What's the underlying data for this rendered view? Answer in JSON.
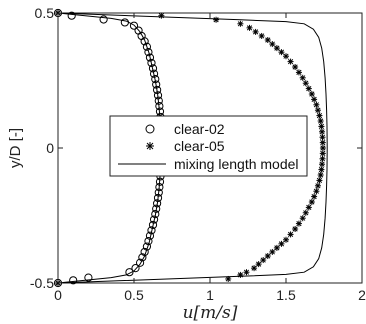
{
  "chart_data": {
    "type": "scatter",
    "xlabel": "u[m/s]",
    "ylabel": "y/D [-]",
    "xlim": [
      0,
      2
    ],
    "ylim": [
      -0.5,
      0.5
    ],
    "xticks": [
      "0",
      "0.5",
      "1",
      "1.5",
      "2"
    ],
    "yticks": [
      "-0.5",
      "0",
      "0.5"
    ],
    "grid": false,
    "legend_position": "center",
    "series": [
      {
        "name": "clear-02",
        "marker": "circle",
        "points": [
          [
            0.0,
            0.5
          ],
          [
            0.09,
            0.49
          ],
          [
            0.3,
            0.476
          ],
          [
            0.44,
            0.465
          ],
          [
            0.5,
            0.453
          ],
          [
            0.53,
            0.435
          ],
          [
            0.55,
            0.415
          ],
          [
            0.57,
            0.395
          ],
          [
            0.585,
            0.375
          ],
          [
            0.595,
            0.355
          ],
          [
            0.605,
            0.335
          ],
          [
            0.615,
            0.315
          ],
          [
            0.625,
            0.295
          ],
          [
            0.632,
            0.275
          ],
          [
            0.64,
            0.255
          ],
          [
            0.646,
            0.235
          ],
          [
            0.652,
            0.215
          ],
          [
            0.658,
            0.195
          ],
          [
            0.663,
            0.175
          ],
          [
            0.667,
            0.155
          ],
          [
            0.671,
            0.135
          ],
          [
            0.674,
            0.115
          ],
          [
            0.676,
            0.095
          ],
          [
            0.678,
            0.075
          ],
          [
            0.679,
            0.055
          ],
          [
            0.68,
            0.035
          ],
          [
            0.68,
            0.015
          ],
          [
            0.68,
            -0.005
          ],
          [
            0.68,
            -0.025
          ],
          [
            0.679,
            -0.045
          ],
          [
            0.678,
            -0.065
          ],
          [
            0.676,
            -0.085
          ],
          [
            0.674,
            -0.105
          ],
          [
            0.671,
            -0.125
          ],
          [
            0.667,
            -0.145
          ],
          [
            0.663,
            -0.165
          ],
          [
            0.658,
            -0.185
          ],
          [
            0.652,
            -0.205
          ],
          [
            0.646,
            -0.225
          ],
          [
            0.64,
            -0.245
          ],
          [
            0.632,
            -0.265
          ],
          [
            0.625,
            -0.285
          ],
          [
            0.615,
            -0.305
          ],
          [
            0.605,
            -0.325
          ],
          [
            0.595,
            -0.345
          ],
          [
            0.585,
            -0.365
          ],
          [
            0.57,
            -0.385
          ],
          [
            0.555,
            -0.405
          ],
          [
            0.54,
            -0.425
          ],
          [
            0.51,
            -0.445
          ],
          [
            0.47,
            -0.46
          ],
          [
            0.2,
            -0.48
          ],
          [
            0.1,
            -0.49
          ],
          [
            0.0,
            -0.5
          ]
        ]
      },
      {
        "name": "clear-05",
        "marker": "asterisk",
        "points": [
          [
            0.0,
            0.5
          ],
          [
            0.68,
            0.49
          ],
          [
            1.04,
            0.475
          ],
          [
            1.2,
            0.46
          ],
          [
            1.26,
            0.445
          ],
          [
            1.3,
            0.43
          ],
          [
            1.34,
            0.415
          ],
          [
            1.38,
            0.4
          ],
          [
            1.41,
            0.385
          ],
          [
            1.44,
            0.37
          ],
          [
            1.47,
            0.355
          ],
          [
            1.5,
            0.34
          ],
          [
            1.53,
            0.32
          ],
          [
            1.56,
            0.3
          ],
          [
            1.585,
            0.28
          ],
          [
            1.61,
            0.26
          ],
          [
            1.63,
            0.24
          ],
          [
            1.65,
            0.22
          ],
          [
            1.67,
            0.2
          ],
          [
            1.685,
            0.18
          ],
          [
            1.7,
            0.16
          ],
          [
            1.71,
            0.14
          ],
          [
            1.72,
            0.12
          ],
          [
            1.728,
            0.1
          ],
          [
            1.733,
            0.08
          ],
          [
            1.737,
            0.06
          ],
          [
            1.74,
            0.04
          ],
          [
            1.742,
            0.02
          ],
          [
            1.743,
            0.0
          ],
          [
            1.742,
            -0.02
          ],
          [
            1.74,
            -0.04
          ],
          [
            1.737,
            -0.06
          ],
          [
            1.733,
            -0.08
          ],
          [
            1.728,
            -0.1
          ],
          [
            1.72,
            -0.12
          ],
          [
            1.71,
            -0.14
          ],
          [
            1.7,
            -0.16
          ],
          [
            1.685,
            -0.18
          ],
          [
            1.67,
            -0.2
          ],
          [
            1.65,
            -0.22
          ],
          [
            1.63,
            -0.24
          ],
          [
            1.61,
            -0.26
          ],
          [
            1.585,
            -0.28
          ],
          [
            1.56,
            -0.3
          ],
          [
            1.53,
            -0.32
          ],
          [
            1.5,
            -0.34
          ],
          [
            1.47,
            -0.355
          ],
          [
            1.44,
            -0.37
          ],
          [
            1.41,
            -0.385
          ],
          [
            1.38,
            -0.4
          ],
          [
            1.35,
            -0.415
          ],
          [
            1.32,
            -0.43
          ],
          [
            1.29,
            -0.445
          ],
          [
            1.24,
            -0.46
          ],
          [
            1.2,
            -0.47
          ],
          [
            1.12,
            -0.485
          ],
          [
            0.0,
            -0.5
          ]
        ]
      },
      {
        "name": "mixing length model",
        "marker": "line",
        "curves": [
          [
            [
              0.0,
              0.5
            ],
            [
              0.35,
              0.48
            ],
            [
              0.45,
              0.47
            ],
            [
              0.5,
              0.455
            ],
            [
              0.54,
              0.43
            ],
            [
              0.57,
              0.4
            ],
            [
              0.6,
              0.35
            ],
            [
              0.62,
              0.3
            ],
            [
              0.64,
              0.25
            ],
            [
              0.655,
              0.2
            ],
            [
              0.665,
              0.15
            ],
            [
              0.672,
              0.1
            ],
            [
              0.676,
              0.05
            ],
            [
              0.677,
              0.0
            ],
            [
              0.676,
              -0.05
            ],
            [
              0.672,
              -0.1
            ],
            [
              0.665,
              -0.15
            ],
            [
              0.655,
              -0.2
            ],
            [
              0.64,
              -0.25
            ],
            [
              0.62,
              -0.3
            ],
            [
              0.6,
              -0.35
            ],
            [
              0.57,
              -0.4
            ],
            [
              0.54,
              -0.43
            ],
            [
              0.5,
              -0.455
            ],
            [
              0.45,
              -0.47
            ],
            [
              0.35,
              -0.48
            ],
            [
              0.0,
              -0.5
            ]
          ],
          [
            [
              0.0,
              0.5
            ],
            [
              1.2,
              0.475
            ],
            [
              1.5,
              0.468
            ],
            [
              1.62,
              0.46
            ],
            [
              1.68,
              0.44
            ],
            [
              1.715,
              0.41
            ],
            [
              1.735,
              0.37
            ],
            [
              1.748,
              0.32
            ],
            [
              1.757,
              0.26
            ],
            [
              1.763,
              0.2
            ],
            [
              1.767,
              0.14
            ],
            [
              1.77,
              0.08
            ],
            [
              1.771,
              0.0
            ],
            [
              1.77,
              -0.08
            ],
            [
              1.767,
              -0.14
            ],
            [
              1.763,
              -0.2
            ],
            [
              1.757,
              -0.26
            ],
            [
              1.748,
              -0.32
            ],
            [
              1.735,
              -0.37
            ],
            [
              1.715,
              -0.41
            ],
            [
              1.68,
              -0.44
            ],
            [
              1.62,
              -0.46
            ],
            [
              1.5,
              -0.468
            ],
            [
              1.2,
              -0.475
            ],
            [
              0.0,
              -0.5
            ]
          ]
        ]
      }
    ]
  }
}
